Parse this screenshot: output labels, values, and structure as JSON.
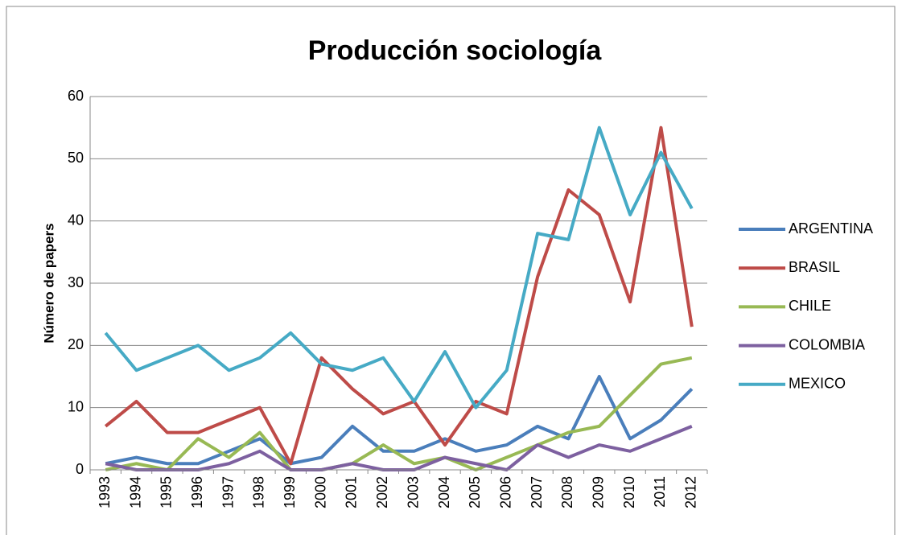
{
  "chart_data": {
    "type": "line",
    "title": "Producción sociología",
    "y_label": "Número de papers",
    "categories": [
      "1993",
      "1994",
      "1995",
      "1996",
      "1997",
      "1998",
      "1999",
      "2000",
      "2001",
      "2002",
      "2003",
      "2004",
      "2005",
      "2006",
      "2007",
      "2008",
      "2009",
      "2010",
      "2011",
      "2012"
    ],
    "series": [
      {
        "name": "ARGENTINA",
        "color": "#4a7ebb",
        "values": [
          1,
          2,
          1,
          1,
          3,
          5,
          1,
          2,
          7,
          3,
          3,
          5,
          3,
          4,
          7,
          5,
          15,
          5,
          8,
          13
        ]
      },
      {
        "name": "BRASIL",
        "color": "#be4b48",
        "values": [
          7,
          11,
          6,
          6,
          8,
          10,
          1,
          18,
          13,
          9,
          11,
          4,
          11,
          9,
          31,
          45,
          41,
          27,
          55,
          23
        ]
      },
      {
        "name": "CHILE",
        "color": "#98b954",
        "values": [
          0,
          1,
          0,
          5,
          2,
          6,
          0,
          0,
          1,
          4,
          1,
          2,
          0,
          2,
          4,
          6,
          7,
          12,
          17,
          18
        ]
      },
      {
        "name": "COLOMBIA",
        "color": "#7d60a0",
        "values": [
          1,
          0,
          0,
          0,
          1,
          3,
          0,
          0,
          1,
          0,
          0,
          2,
          1,
          0,
          4,
          2,
          4,
          3,
          5,
          7
        ]
      },
      {
        "name": "MEXICO",
        "color": "#46aac5",
        "values": [
          22,
          16,
          18,
          20,
          16,
          18,
          22,
          17,
          16,
          18,
          11,
          19,
          10,
          16,
          38,
          37,
          55,
          41,
          51,
          42
        ]
      }
    ],
    "ylim": [
      0,
      60
    ],
    "yticks": [
      0,
      10,
      20,
      30,
      40,
      50,
      60
    ],
    "grid": true,
    "legend": "right"
  }
}
